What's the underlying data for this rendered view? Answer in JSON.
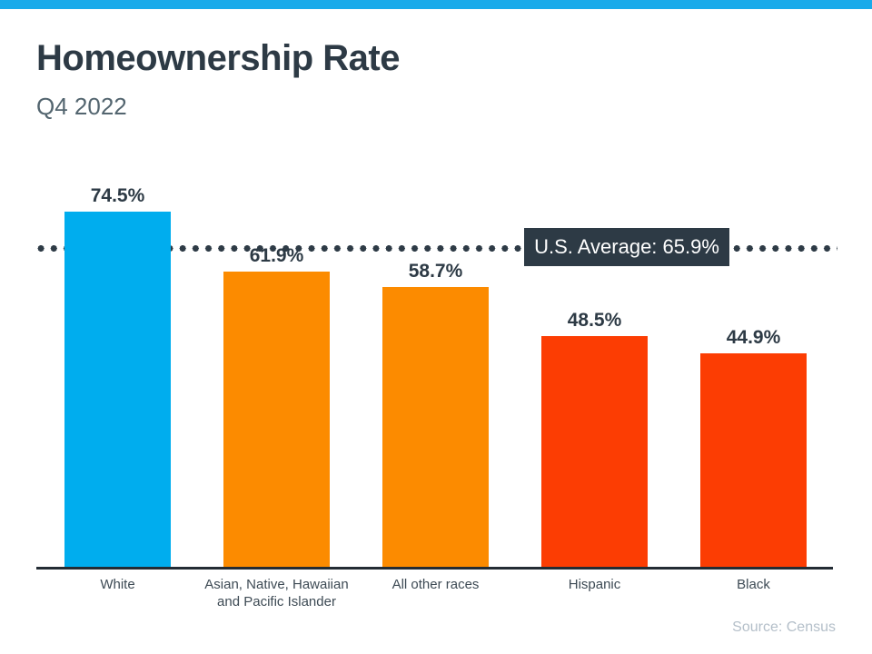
{
  "header": {
    "title": "Homeownership Rate",
    "subtitle": "Q4 2022",
    "accent_bar_color": "#19aaea"
  },
  "chart_data": {
    "type": "bar",
    "title": "Homeownership Rate",
    "subtitle": "Q4 2022",
    "categories": [
      "White",
      "Asian, Native, Hawaiian and Pacific Islander",
      "All other races",
      "Hispanic",
      "Black"
    ],
    "values": [
      74.5,
      61.9,
      58.7,
      48.5,
      44.9
    ],
    "value_labels": [
      "74.5%",
      "61.9%",
      "58.7%",
      "48.5%",
      "44.9%"
    ],
    "bar_colors": [
      "#00adee",
      "#fc8b00",
      "#fc8b00",
      "#fc3d03",
      "#fc3d03"
    ],
    "reference_line": {
      "label": "U.S. Average: 65.9%",
      "value": 65.9,
      "style": "dotted",
      "color": "#2e3b46"
    },
    "ylim": [
      0,
      80
    ],
    "xlabel": "",
    "ylabel": "",
    "grid": false,
    "legend": null,
    "source": "Source: Census"
  }
}
